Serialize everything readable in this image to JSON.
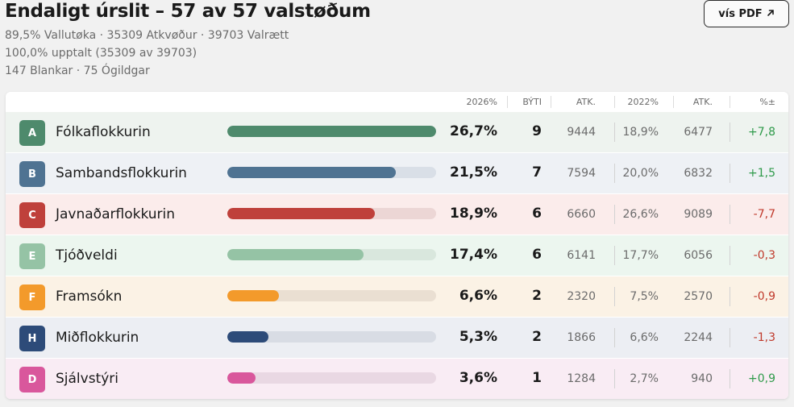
{
  "header": {
    "title": "Endaligt úrslit – 57 av 57 valstøðum",
    "turnout_line": "89,5% Vallutøka · 35309 Atkvøður · 39703 Valrætt",
    "counted_line": "100,0% upptalt (35309 av 39703)",
    "blank_line": "147 Blankar · 75 Ógildgar",
    "pdf_button_label": "vís PDF",
    "pdf_icon": "external-arrow-icon"
  },
  "table": {
    "columns": {
      "pct_2026": "2026%",
      "seats": "BÝTI",
      "votes": "ATK.",
      "pct_2022": "2022%",
      "votes_2022": "ATK.",
      "diff": "%±"
    },
    "rows": [
      {
        "letter": "A",
        "name": "Fólkaflokkurin",
        "pct": "26,7%",
        "seats": "9",
        "votes": "9444",
        "pct_2022": "18,9%",
        "votes_2022": "6477",
        "diff": "+7,8",
        "share": 26.7,
        "color": "#4e8a6c",
        "row_bg": "#eef3ef",
        "track": "#d9e6de"
      },
      {
        "letter": "B",
        "name": "Sambandsflokkurin",
        "pct": "21,5%",
        "seats": "7",
        "votes": "7594",
        "pct_2022": "20,0%",
        "votes_2022": "6832",
        "diff": "+1,5",
        "share": 21.5,
        "color": "#4f7392",
        "row_bg": "#eef1f5",
        "track": "#d9dfe7"
      },
      {
        "letter": "C",
        "name": "Javnaðarflokkurin",
        "pct": "18,9%",
        "seats": "6",
        "votes": "6660",
        "pct_2022": "26,6%",
        "votes_2022": "9089",
        "diff": "-7,7",
        "share": 18.9,
        "color": "#bf403b",
        "row_bg": "#fbeceb",
        "track": "#ecd6d5"
      },
      {
        "letter": "E",
        "name": "Tjóðveldi",
        "pct": "17,4%",
        "seats": "6",
        "votes": "6141",
        "pct_2022": "17,7%",
        "votes_2022": "6056",
        "diff": "-0,3",
        "share": 17.4,
        "color": "#95c3a5",
        "row_bg": "#ecf6ef",
        "track": "#d9e7dd"
      },
      {
        "letter": "F",
        "name": "Framsókn",
        "pct": "6,6%",
        "seats": "2",
        "votes": "2320",
        "pct_2022": "7,5%",
        "votes_2022": "2570",
        "diff": "-0,9",
        "share": 6.6,
        "color": "#f39a2b",
        "row_bg": "#fbf2e5",
        "track": "#eadfd2"
      },
      {
        "letter": "H",
        "name": "Miðflokkurin",
        "pct": "5,3%",
        "seats": "2",
        "votes": "1866",
        "pct_2022": "6,6%",
        "votes_2022": "2244",
        "diff": "-1,3",
        "share": 5.3,
        "color": "#2d4b79",
        "row_bg": "#eceef3",
        "track": "#d8dce4"
      },
      {
        "letter": "D",
        "name": "Sjálvstýri",
        "pct": "3,6%",
        "seats": "1",
        "votes": "1284",
        "pct_2022": "2,7%",
        "votes_2022": "940",
        "diff": "+0,9",
        "share": 3.6,
        "color": "#d9579c",
        "row_bg": "#f9ecf4",
        "track": "#e9d8e3"
      }
    ]
  }
}
